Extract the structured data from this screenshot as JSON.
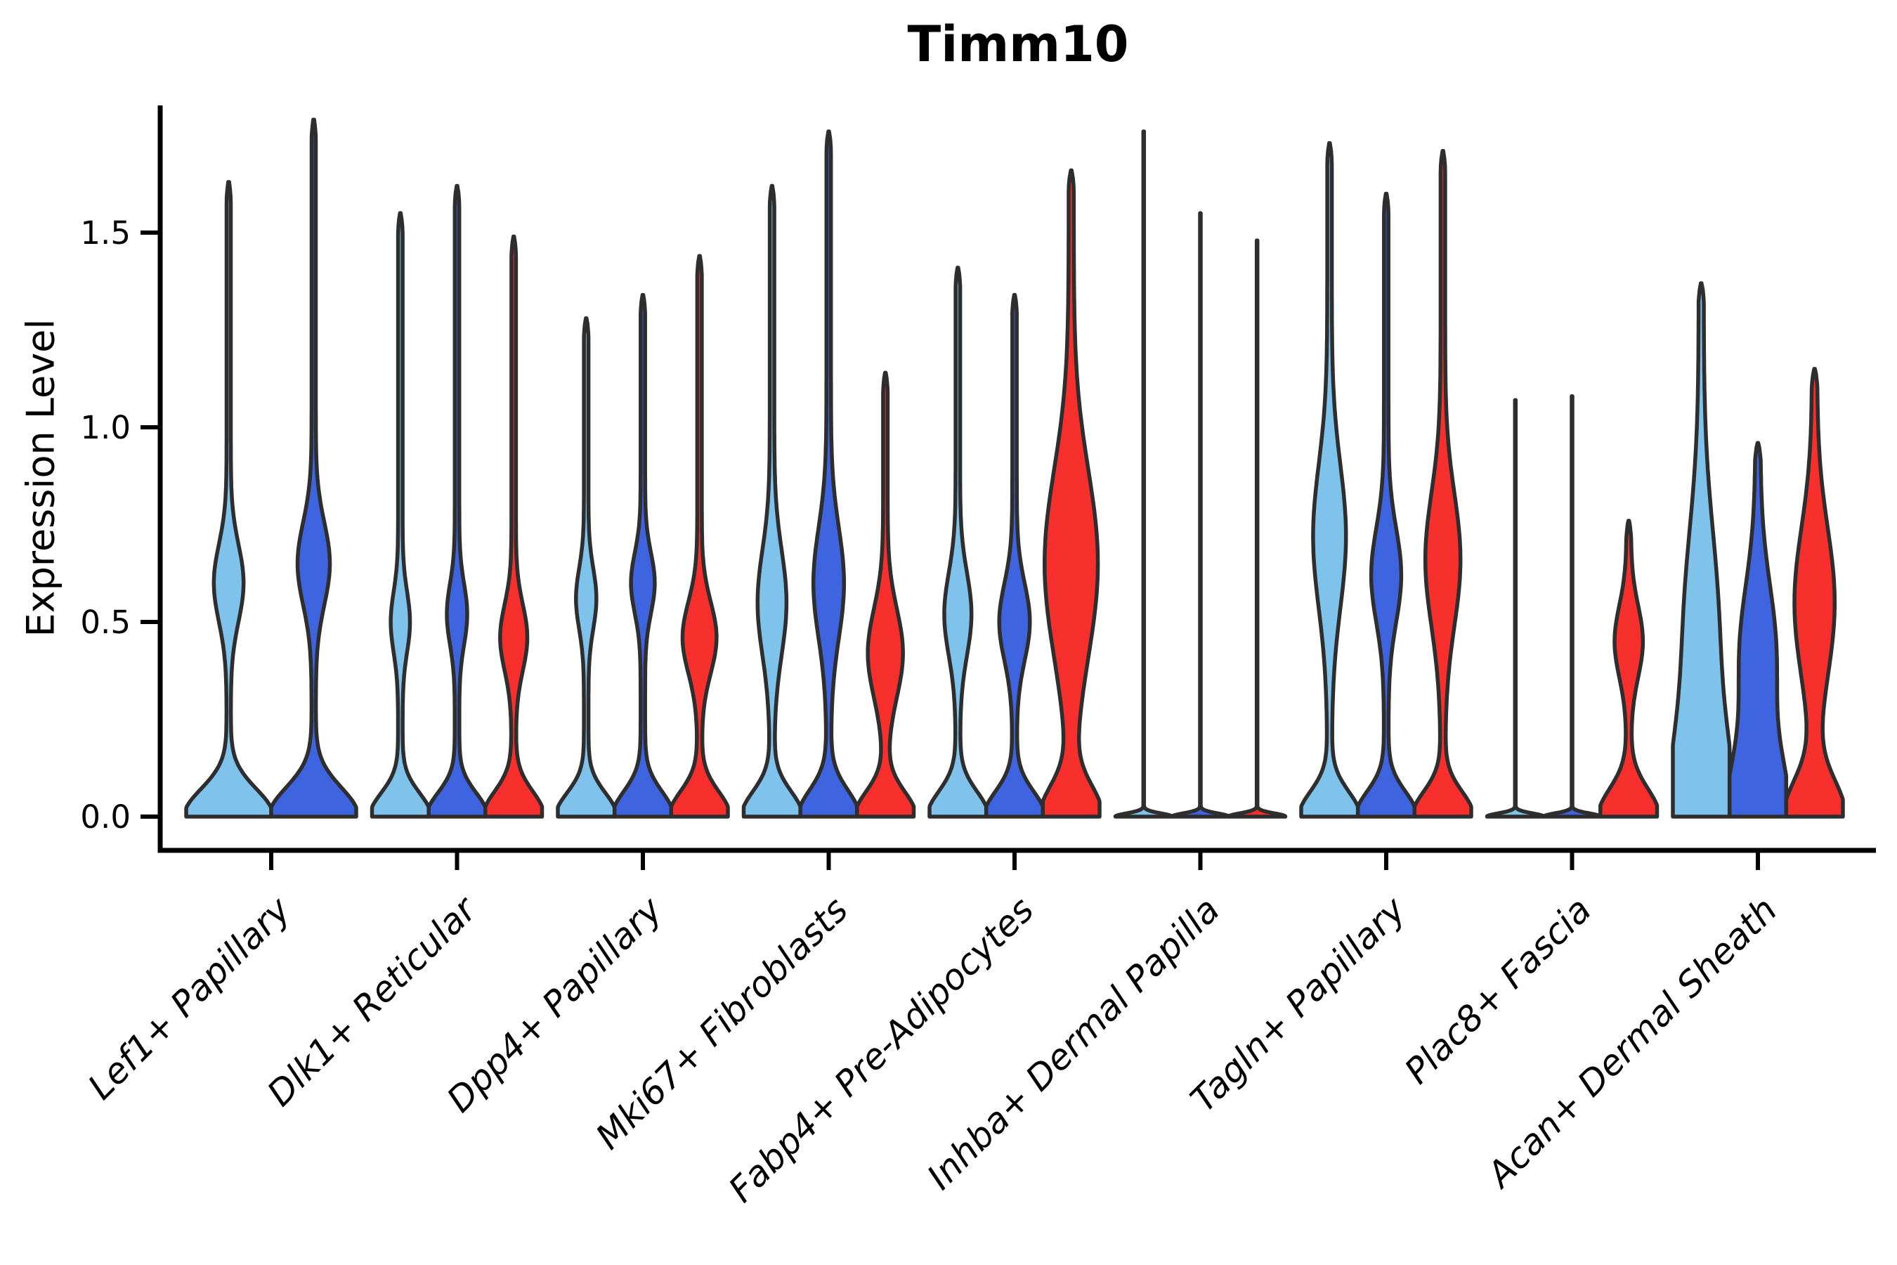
{
  "chart_data": {
    "type": "violin",
    "title": "Timm10",
    "xlabel": "",
    "ylabel": "Expression Level",
    "ylim": [
      0,
      1.85
    ],
    "yticks": [
      0.0,
      0.5,
      1.0,
      1.5
    ],
    "ytick_labels": [
      "0.0",
      "0.5",
      "1.0",
      "1.5"
    ],
    "grid": false,
    "legend": "none",
    "categories": [
      "Lef1+ Papillary",
      "Dlk1+ Reticular",
      "Dpp4+ Papillary",
      "Mki67+ Fibroblasts",
      "Fabp4+ Pre-Adipocytes",
      "Inhba+ Dermal Papilla",
      "Tagln+ Papillary",
      "Plac8+ Fascia",
      "Acan+ Dermal Sheath"
    ],
    "series": [
      {
        "name": "series-1",
        "color": "#7FC3EC"
      },
      {
        "name": "series-2",
        "color": "#3E64DF"
      },
      {
        "name": "series-3",
        "color": "#F8302D"
      }
    ],
    "violins": [
      {
        "category": "Lef1+ Papillary",
        "cells": [
          {
            "series": 0,
            "max": 1.63,
            "stem": 0.05,
            "base": [
              1,
              0.1
            ],
            "bulge": [
              0.3,
              0.6,
              0.14
            ]
          },
          {
            "series": 1,
            "max": 1.79,
            "stem": 0.05,
            "base": [
              1,
              0.105
            ],
            "bulge": [
              0.33,
              0.65,
              0.15
            ]
          }
        ]
      },
      {
        "category": "Dlk1+ Reticular",
        "cells": [
          {
            "series": 0,
            "max": 1.55,
            "stem": 0.08,
            "base": [
              1,
              0.085
            ],
            "bulge": [
              0.26,
              0.5,
              0.11
            ]
          },
          {
            "series": 1,
            "max": 1.62,
            "stem": 0.08,
            "base": [
              1,
              0.085
            ],
            "bulge": [
              0.28,
              0.52,
              0.11
            ]
          },
          {
            "series": 2,
            "max": 1.49,
            "stem": 0.08,
            "base": [
              1,
              0.09
            ],
            "bulge": [
              0.4,
              0.46,
              0.12
            ]
          }
        ]
      },
      {
        "category": "Dpp4+ Papillary",
        "cells": [
          {
            "series": 0,
            "max": 1.28,
            "stem": 0.08,
            "base": [
              1,
              0.085
            ],
            "bulge": [
              0.28,
              0.56,
              0.11
            ]
          },
          {
            "series": 1,
            "max": 1.34,
            "stem": 0.08,
            "base": [
              1,
              0.09
            ],
            "bulge": [
              0.34,
              0.6,
              0.11
            ]
          },
          {
            "series": 2,
            "max": 1.44,
            "stem": 0.08,
            "base": [
              1,
              0.09
            ],
            "bulge": [
              0.52,
              0.46,
              0.13
            ]
          }
        ]
      },
      {
        "category": "Mki67+ Fibroblasts",
        "cells": [
          {
            "series": 0,
            "max": 1.62,
            "stem": 0.08,
            "base": [
              1,
              0.09
            ],
            "bulge": [
              0.43,
              0.55,
              0.19
            ]
          },
          {
            "series": 1,
            "max": 1.76,
            "stem": 0.08,
            "base": [
              1,
              0.095
            ],
            "bulge": [
              0.46,
              0.6,
              0.2
            ]
          },
          {
            "series": 2,
            "max": 1.14,
            "stem": 0.08,
            "base": [
              1,
              0.09
            ],
            "bulge": [
              0.54,
              0.42,
              0.16
            ]
          }
        ]
      },
      {
        "category": "Fabp4+ Pre-Adipocytes",
        "cells": [
          {
            "series": 0,
            "max": 1.41,
            "stem": 0.08,
            "base": [
              1,
              0.09
            ],
            "bulge": [
              0.4,
              0.52,
              0.15
            ]
          },
          {
            "series": 1,
            "max": 1.34,
            "stem": 0.08,
            "base": [
              1,
              0.09
            ],
            "bulge": [
              0.46,
              0.5,
              0.14
            ]
          },
          {
            "series": 2,
            "max": 1.66,
            "stem": 0.09,
            "base": [
              1,
              0.11
            ],
            "bulge": [
              0.85,
              0.65,
              0.34
            ]
          }
        ]
      },
      {
        "category": "Inhba+ Dermal Papilla",
        "cells": [
          {
            "series": 0,
            "max": 1.76,
            "stem": 0.006,
            "base": [
              1,
              0.012
            ],
            "bulge": [
              0,
              0,
              1
            ]
          },
          {
            "series": 1,
            "max": 1.55,
            "stem": 0.006,
            "base": [
              1,
              0.012
            ],
            "bulge": [
              0,
              0,
              1
            ]
          },
          {
            "series": 2,
            "max": 1.48,
            "stem": 0.006,
            "base": [
              1,
              0.012
            ],
            "bulge": [
              0,
              0,
              1
            ]
          }
        ]
      },
      {
        "category": "Tagln+ Papillary",
        "cells": [
          {
            "series": 0,
            "max": 1.73,
            "stem": 0.08,
            "base": [
              1,
              0.09
            ],
            "bulge": [
              0.5,
              0.72,
              0.26
            ]
          },
          {
            "series": 1,
            "max": 1.6,
            "stem": 0.08,
            "base": [
              1,
              0.09
            ],
            "bulge": [
              0.45,
              0.62,
              0.17
            ]
          },
          {
            "series": 2,
            "max": 1.71,
            "stem": 0.08,
            "base": [
              1,
              0.09
            ],
            "bulge": [
              0.54,
              0.66,
              0.24
            ]
          }
        ]
      },
      {
        "category": "Plac8+ Fascia",
        "cells": [
          {
            "series": 0,
            "max": 1.07,
            "stem": 0.006,
            "base": [
              1,
              0.012
            ],
            "bulge": [
              0,
              0,
              1
            ]
          },
          {
            "series": 1,
            "max": 1.08,
            "stem": 0.006,
            "base": [
              1,
              0.012
            ],
            "bulge": [
              0,
              0,
              1
            ]
          },
          {
            "series": 2,
            "max": 0.76,
            "stem": 0.08,
            "base": [
              1,
              0.1
            ],
            "bulge": [
              0.42,
              0.45,
              0.13
            ]
          }
        ]
      },
      {
        "category": "Acan+ Dermal Sheath",
        "cells": [
          {
            "series": 0,
            "max": 1.37,
            "stem": 0.09,
            "base": [
              1,
              0.3
            ],
            "bulge": [
              0.5,
              0.5,
              0.35
            ]
          },
          {
            "series": 1,
            "max": 0.96,
            "stem": 0.09,
            "base": [
              1,
              0.22
            ],
            "bulge": [
              0.55,
              0.42,
              0.25
            ]
          },
          {
            "series": 2,
            "max": 1.15,
            "stem": 0.09,
            "base": [
              1,
              0.13
            ],
            "bulge": [
              0.62,
              0.55,
              0.27
            ]
          }
        ]
      }
    ]
  },
  "style": {
    "background": "#ffffff",
    "axis_color": "#000000",
    "violin_outline": "#2E2E2E",
    "text_color": "#000000"
  }
}
